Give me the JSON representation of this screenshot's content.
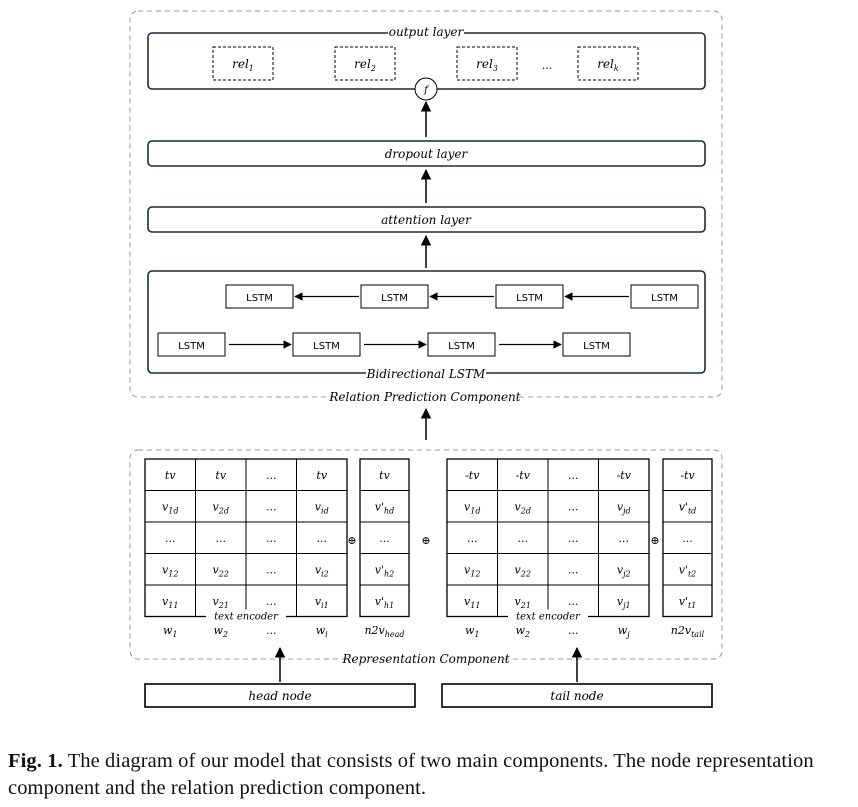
{
  "relation_component": {
    "output_layer": "output layer",
    "rel_boxes": [
      {
        "base": "rel",
        "sub": "1"
      },
      {
        "base": "rel",
        "sub": "2"
      },
      {
        "base": "rel",
        "sub": "3"
      },
      {
        "base": "rel",
        "sub": "k"
      }
    ],
    "rel_ellipsis": "...",
    "f_node": "f",
    "dropout_layer": "dropout layer",
    "attention_layer": "attention layer",
    "lstm_label": "LSTM",
    "bilstm_label": "Bidirectional LSTM",
    "component_label": "Relation Prediction Component"
  },
  "representation_component": {
    "component_label": "Representation Component",
    "text_encoder": "text encoder",
    "oplus": "⊕",
    "head": {
      "grid": [
        [
          "tv",
          "tv",
          "...",
          "tv"
        ],
        [
          {
            "b": "v",
            "s": "1d"
          },
          {
            "b": "v",
            "s": "2d"
          },
          "...",
          {
            "b": "v",
            "s": "id"
          }
        ],
        [
          "...",
          "...",
          "...",
          "..."
        ],
        [
          {
            "b": "v",
            "s": "12"
          },
          {
            "b": "v",
            "s": "22"
          },
          "...",
          {
            "b": "v",
            "s": "i2"
          }
        ],
        [
          {
            "b": "v",
            "s": "11"
          },
          {
            "b": "v",
            "s": "21"
          },
          "...",
          {
            "b": "v",
            "s": "i1"
          }
        ]
      ],
      "words": [
        {
          "b": "w",
          "s": "1"
        },
        {
          "b": "w",
          "s": "2"
        },
        "...",
        {
          "b": "w",
          "s": "i"
        }
      ],
      "n2v_col": [
        "tv",
        {
          "b": "v'",
          "s": "hd"
        },
        "...",
        {
          "b": "v'",
          "s": "h2"
        },
        {
          "b": "v'",
          "s": "h1"
        }
      ],
      "n2v_label": {
        "b": "n2v",
        "s": "head"
      },
      "node_label": "head node"
    },
    "tail": {
      "grid": [
        [
          "-tv",
          "-tv",
          "...",
          "-tv"
        ],
        [
          {
            "b": "v",
            "s": "1d"
          },
          {
            "b": "v",
            "s": "2d"
          },
          "...",
          {
            "b": "v",
            "s": "jd"
          }
        ],
        [
          "...",
          "...",
          "...",
          "..."
        ],
        [
          {
            "b": "v",
            "s": "12"
          },
          {
            "b": "v",
            "s": "22"
          },
          "...",
          {
            "b": "v",
            "s": "j2"
          }
        ],
        [
          {
            "b": "v",
            "s": "11"
          },
          {
            "b": "v",
            "s": "21"
          },
          "...",
          {
            "b": "v",
            "s": "j1"
          }
        ]
      ],
      "words": [
        {
          "b": "w",
          "s": "1"
        },
        {
          "b": "w",
          "s": "2"
        },
        "...",
        {
          "b": "w",
          "s": "j"
        }
      ],
      "n2v_col": [
        "-tv",
        {
          "b": "v'",
          "s": "td"
        },
        "...",
        {
          "b": "v'",
          "s": "t2"
        },
        {
          "b": "v'",
          "s": "t1"
        }
      ],
      "n2v_label": {
        "b": "n2v",
        "s": "tail"
      },
      "node_label": "tail node"
    }
  },
  "caption": {
    "prefix": "Fig. 1.",
    "text": "The diagram of our model that consists of two main components. The node representation component and the relation prediction component."
  }
}
